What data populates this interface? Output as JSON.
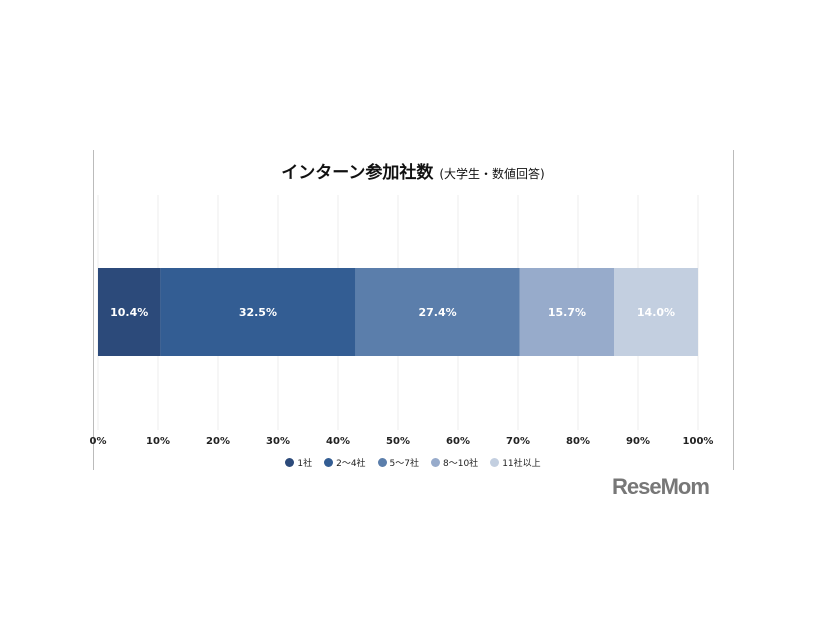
{
  "chart_data": {
    "type": "bar",
    "orientation": "horizontal-stacked",
    "title": "インターン参加社数",
    "subtitle": "(大学生・数値回答)",
    "categories": [
      ""
    ],
    "series": [
      {
        "name": "1社",
        "values": [
          10.4
        ],
        "label": "10.4%",
        "color": "#2c4a7a"
      },
      {
        "name": "2〜4社",
        "values": [
          32.5
        ],
        "label": "32.5%",
        "color": "#335d93"
      },
      {
        "name": "5〜7社",
        "values": [
          27.4
        ],
        "label": "27.4%",
        "color": "#5b7eab"
      },
      {
        "name": "8〜10社",
        "values": [
          15.7
        ],
        "label": "15.7%",
        "color": "#97abcb"
      },
      {
        "name": "11社以上",
        "values": [
          14.0
        ],
        "label": "14.0%",
        "color": "#c3cfe0"
      }
    ],
    "xlim": [
      0,
      100
    ],
    "xticks": [
      "0%",
      "10%",
      "20%",
      "30%",
      "40%",
      "50%",
      "60%",
      "70%",
      "80%",
      "90%",
      "100%"
    ],
    "grid": true,
    "legend": "bottom"
  },
  "watermark": "ReseMom"
}
